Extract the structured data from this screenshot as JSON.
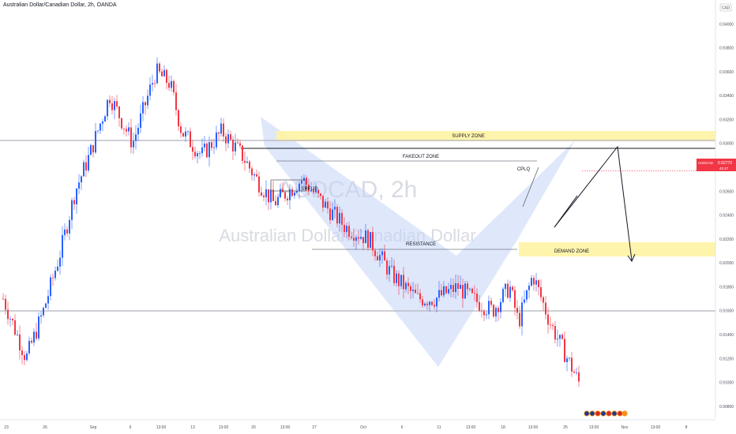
{
  "header": {
    "title": "Australian Dollar/Canadian Dollar, 2h, OANDA"
  },
  "watermark": {
    "symbol": "AUDCAD, 2h",
    "name": "Australian Dollar/Canadian Dollar"
  },
  "price_axis": {
    "currency": "CAD",
    "last_price_symbol": "AUDCAD",
    "last_price": "0.92770",
    "countdown": "42:47"
  },
  "annotations": {
    "supply": "SUPPLY ZONE",
    "fakeout": "FAKEOUT ZONE",
    "cplq": "CPLQ",
    "srflip": "SRFLIP",
    "resistance": "RESISTANCE",
    "demand": "DEMAND ZONE"
  },
  "colors": {
    "up": "#2962ff",
    "down": "#f23645",
    "zone": "#fff3a3",
    "pattern": "#c5d4f7"
  },
  "chart_data": {
    "type": "candlestick",
    "title": "Australian Dollar/Canadian Dollar, 2h, OANDA",
    "ylim": [
      0.907,
      0.942
    ],
    "y_ticks": [
      "0.94000",
      "0.93800",
      "0.93600",
      "0.93400",
      "0.93200",
      "0.93000",
      "0.92800",
      "0.92600",
      "0.92400",
      "0.92200",
      "0.92000",
      "0.91800",
      "0.91600",
      "0.91400",
      "0.91200",
      "0.91000",
      "0.90800"
    ],
    "y_tick_values": [
      0.94,
      0.938,
      0.936,
      0.934,
      0.932,
      0.93,
      0.928,
      0.926,
      0.924,
      0.922,
      0.92,
      0.918,
      0.916,
      0.914,
      0.912,
      0.91,
      0.908
    ],
    "x_ticks": [
      "23",
      "26",
      "Sep",
      "6",
      "13:00",
      "13",
      "13:00",
      "20",
      "13:00",
      "27",
      "Oct",
      "6",
      "11",
      "13:00",
      "18",
      "13:00",
      "25",
      "13:00",
      "Nov",
      "13:00",
      "8"
    ],
    "price_path_anchors": [
      [
        0.0,
        0.917
      ],
      [
        0.04,
        0.912
      ],
      [
        0.07,
        0.916
      ],
      [
        0.1,
        0.921
      ],
      [
        0.125,
        0.926
      ],
      [
        0.15,
        0.929
      ],
      [
        0.185,
        0.934
      ],
      [
        0.225,
        0.93
      ],
      [
        0.265,
        0.936
      ],
      [
        0.29,
        0.935
      ],
      [
        0.31,
        0.931
      ],
      [
        0.345,
        0.929
      ],
      [
        0.38,
        0.931
      ],
      [
        0.415,
        0.929
      ],
      [
        0.44,
        0.927
      ],
      [
        0.47,
        0.925
      ],
      [
        0.52,
        0.927
      ],
      [
        0.555,
        0.925
      ],
      [
        0.595,
        0.923
      ],
      [
        0.635,
        0.922
      ],
      [
        0.675,
        0.919
      ],
      [
        0.72,
        0.917
      ],
      [
        0.75,
        0.917
      ],
      [
        0.79,
        0.918
      ],
      [
        0.815,
        0.917
      ],
      [
        0.85,
        0.916
      ],
      [
        0.88,
        0.918
      ],
      [
        0.895,
        0.915
      ],
      [
        0.92,
        0.919
      ],
      [
        0.95,
        0.915
      ],
      [
        1.0,
        0.91
      ]
    ],
    "horizontal_levels": [
      {
        "price": 0.9297,
        "label": "top gray level"
      },
      {
        "price": 0.9287,
        "label": "black neckline"
      },
      {
        "price": 0.928,
        "label": "fakeout"
      },
      {
        "price": 0.9206,
        "label": "resistance"
      },
      {
        "price": 0.9156,
        "label": "bottom gray level"
      }
    ],
    "zones": [
      {
        "name": "SUPPLY ZONE",
        "price_high": 0.9302,
        "price_low": 0.9297
      },
      {
        "name": "DEMAND ZONE",
        "price_high": 0.9212,
        "price_low": 0.92
      }
    ],
    "last_price": 0.9277
  }
}
